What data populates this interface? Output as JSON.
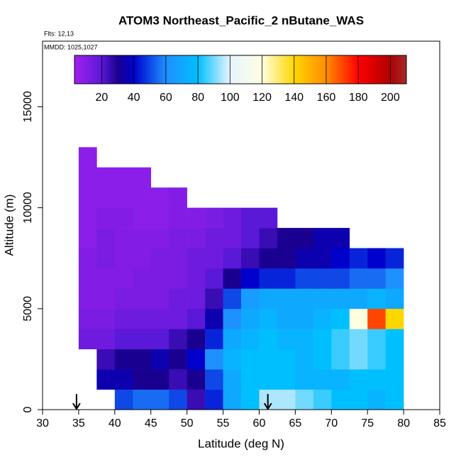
{
  "chart_data": {
    "type": "heatmap",
    "title": "ATOM3 Northeast_Pacific_2 nButane_WAS",
    "flights": "Flts: 12,13",
    "dates": "MMDD: 1025,1027",
    "xlabel": "Latitude (deg N)",
    "ylabel": "Altitude (m)",
    "xlim": [
      30,
      85
    ],
    "xticks": [
      30,
      35,
      40,
      45,
      50,
      55,
      60,
      65,
      70,
      75,
      80,
      85
    ],
    "ylim": [
      0,
      18250
    ],
    "yticks": [
      0,
      5000,
      10000,
      15000
    ],
    "x_edges": [
      35,
      37.5,
      40,
      42.5,
      45,
      47.5,
      50,
      52.5,
      55,
      57.5,
      60,
      62.5,
      65,
      67.5,
      70,
      72.5,
      75,
      77.5,
      80
    ],
    "y_edges": [
      0,
      1000,
      2000,
      3000,
      4000,
      5000,
      6000,
      7000,
      8000,
      9000,
      10000,
      11000,
      12000,
      13000
    ],
    "values": [
      [
        null,
        null,
        50,
        55,
        55,
        50,
        25,
        45,
        70,
        80,
        95,
        95,
        90,
        85,
        80,
        80,
        75,
        80
      ],
      [
        null,
        35,
        35,
        30,
        30,
        25,
        30,
        50,
        70,
        80,
        80,
        80,
        75,
        75,
        75,
        80,
        80,
        80
      ],
      [
        null,
        25,
        30,
        30,
        35,
        30,
        40,
        60,
        75,
        80,
        80,
        80,
        75,
        80,
        85,
        90,
        85,
        80
      ],
      [
        15,
        15,
        20,
        20,
        20,
        25,
        30,
        45,
        70,
        75,
        80,
        75,
        75,
        80,
        85,
        90,
        85,
        80
      ],
      [
        12,
        12,
        15,
        15,
        15,
        15,
        20,
        35,
        60,
        70,
        75,
        70,
        70,
        75,
        80,
        120,
        170,
        140
      ],
      [
        10,
        10,
        12,
        12,
        12,
        15,
        15,
        25,
        50,
        65,
        70,
        70,
        70,
        70,
        70,
        70,
        75,
        70
      ],
      [
        10,
        10,
        10,
        12,
        12,
        12,
        15,
        20,
        30,
        40,
        45,
        45,
        50,
        50,
        50,
        55,
        55,
        60
      ],
      [
        10,
        12,
        10,
        10,
        12,
        12,
        15,
        15,
        20,
        25,
        30,
        30,
        35,
        35,
        40,
        45,
        40,
        45
      ],
      [
        8,
        12,
        10,
        10,
        10,
        12,
        12,
        15,
        15,
        20,
        25,
        30,
        30,
        35,
        35,
        null,
        null,
        null
      ],
      [
        8,
        10,
        10,
        8,
        8,
        10,
        10,
        12,
        15,
        20,
        20,
        null,
        null,
        null,
        null,
        null,
        null,
        null
      ],
      [
        8,
        8,
        8,
        8,
        8,
        10,
        null,
        null,
        null,
        null,
        null,
        null,
        null,
        null,
        null,
        null,
        null,
        null
      ],
      [
        8,
        8,
        8,
        8,
        null,
        null,
        null,
        null,
        null,
        null,
        null,
        null,
        null,
        null,
        null,
        null,
        null,
        null
      ],
      [
        8,
        null,
        null,
        null,
        null,
        null,
        null,
        null,
        null,
        null,
        null,
        null,
        null,
        null,
        null,
        null,
        null,
        null
      ]
    ],
    "colorbar_lim": [
      3,
      210
    ],
    "colorbar_ticks": [
      20,
      40,
      60,
      80,
      100,
      120,
      140,
      160,
      180,
      200
    ],
    "colorscale": [
      [
        3,
        "#a020f0"
      ],
      [
        20,
        "#5a18d8"
      ],
      [
        30,
        "#1a0090"
      ],
      [
        40,
        "#0000cd"
      ],
      [
        60,
        "#1e90ff"
      ],
      [
        80,
        "#00bfff"
      ],
      [
        100,
        "#e6f4ff"
      ],
      [
        120,
        "#ffffe0"
      ],
      [
        140,
        "#ffd700"
      ],
      [
        160,
        "#ff8c00"
      ],
      [
        180,
        "#ff0000"
      ],
      [
        200,
        "#b00000"
      ],
      [
        210,
        "#a52a2a"
      ]
    ],
    "arrows_x": [
      34.7,
      61.2
    ]
  }
}
